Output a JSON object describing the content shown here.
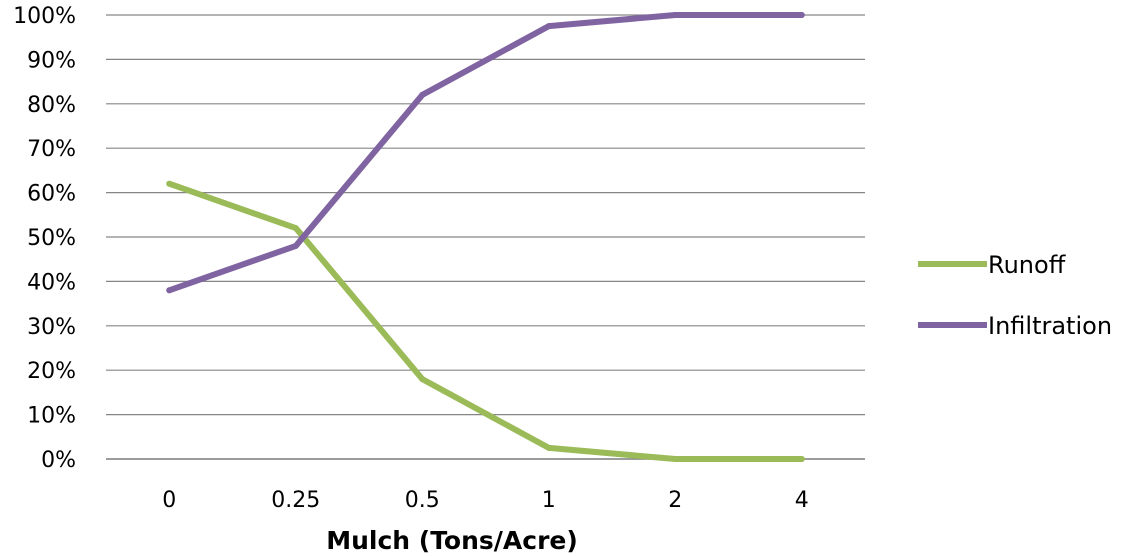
{
  "chart_data": {
    "type": "line",
    "title": "",
    "xlabel": "Mulch (Tons/Acre)",
    "ylabel": "",
    "categories": [
      "0",
      "0.25",
      "0.5",
      "1",
      "2",
      "4"
    ],
    "y_ticks": [
      "0%",
      "10%",
      "20%",
      "30%",
      "40%",
      "50%",
      "60%",
      "70%",
      "80%",
      "90%",
      "100%"
    ],
    "ylim": [
      0,
      100
    ],
    "grid": true,
    "legend_position": "right",
    "series": [
      {
        "name": "Runoff",
        "color": "#9bbb59",
        "values": [
          62,
          52,
          18,
          2.5,
          0,
          0
        ]
      },
      {
        "name": "Infiltration",
        "color": "#8064a2",
        "values": [
          38,
          48,
          82,
          97.5,
          100,
          100
        ]
      }
    ]
  }
}
